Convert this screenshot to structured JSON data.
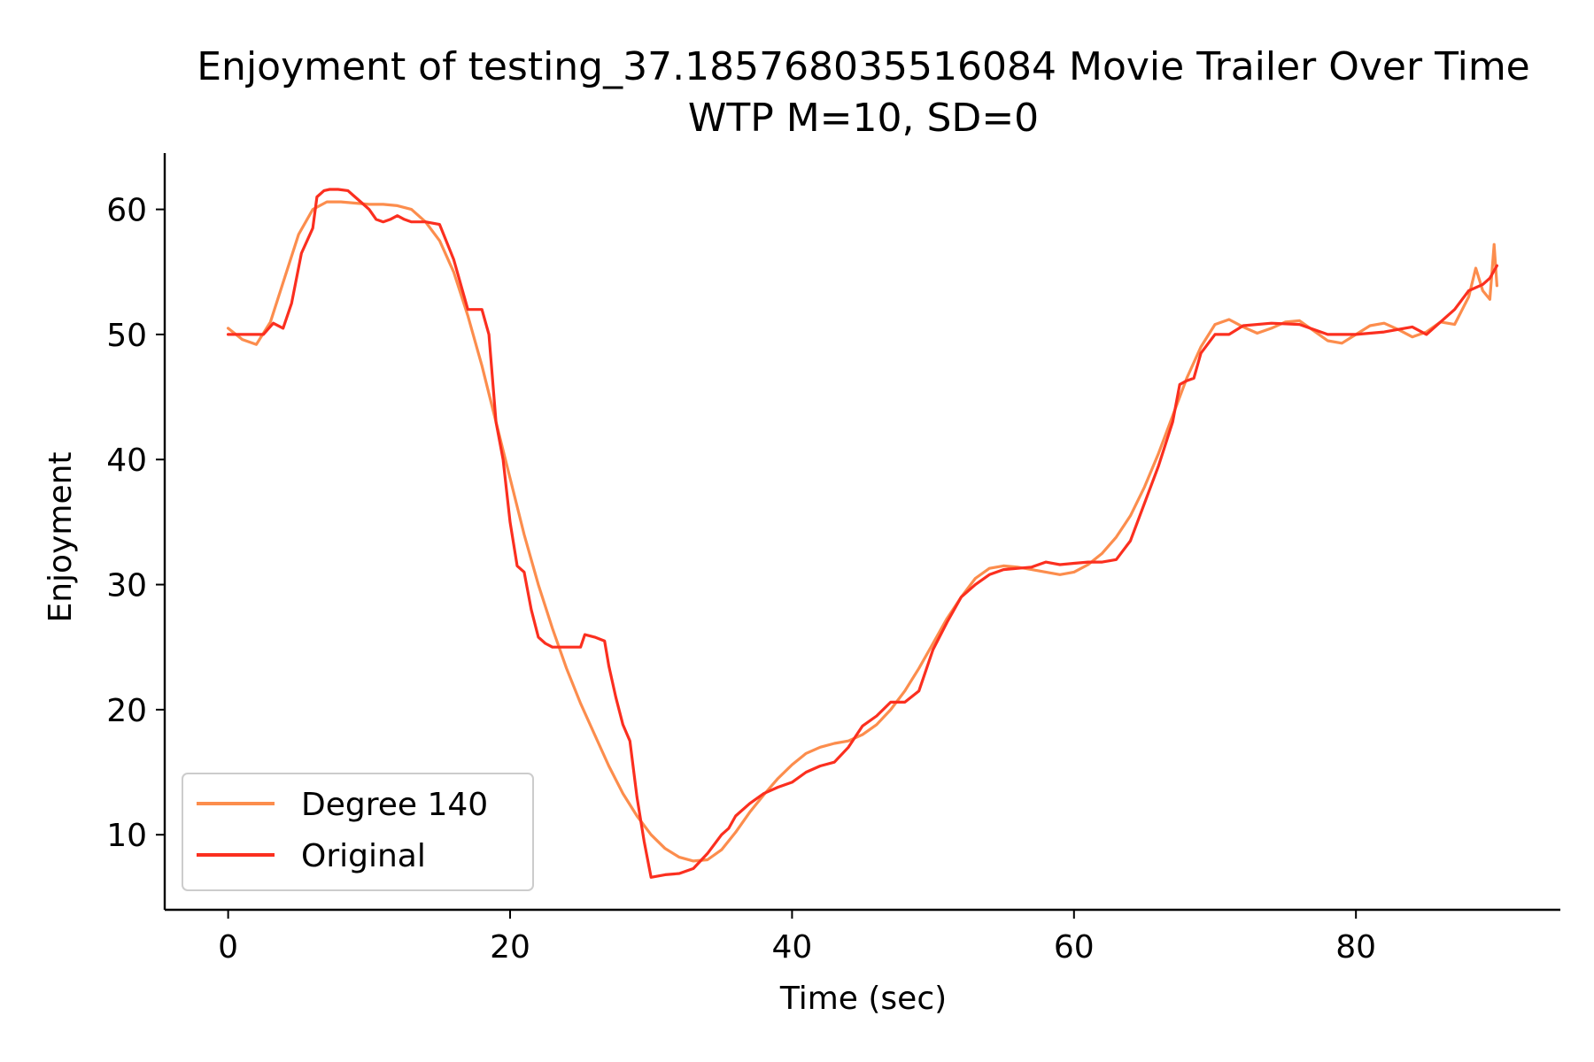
{
  "chart_data": {
    "type": "line",
    "title": "Enjoyment of testing_37.185768035516084 Movie Trailer Over Time",
    "subtitle": "WTP M=10, SD=0",
    "xlabel": "Time (sec)",
    "ylabel": "Enjoyment",
    "xlim": [
      -4.5,
      94.5
    ],
    "ylim": [
      4,
      64.5
    ],
    "xticks": [
      0,
      20,
      40,
      60,
      80
    ],
    "yticks": [
      10,
      20,
      30,
      40,
      50,
      60
    ],
    "grid": false,
    "legend_position": "lower-left",
    "series": [
      {
        "name": "Degree 140",
        "color": "#fc8d4d",
        "x": [
          0,
          1,
          2,
          3,
          4,
          5,
          6,
          7,
          8,
          9,
          10,
          11,
          12,
          13,
          14,
          15,
          16,
          17,
          18,
          19,
          20,
          21,
          22,
          23,
          24,
          25,
          26,
          27,
          28,
          29,
          30,
          31,
          32,
          33,
          34,
          35,
          36,
          37,
          38,
          39,
          40,
          41,
          42,
          43,
          44,
          45,
          46,
          47,
          48,
          49,
          50,
          51,
          52,
          53,
          54,
          55,
          56,
          57,
          58,
          59,
          60,
          61,
          62,
          63,
          64,
          65,
          66,
          67,
          68,
          69,
          70,
          71,
          72,
          73,
          74,
          75,
          76,
          77,
          78,
          79,
          80,
          81,
          82,
          83,
          84,
          85,
          86,
          87,
          88,
          88.5,
          89,
          89.5,
          89.8,
          90
        ],
        "y": [
          50.5,
          49.6,
          49.2,
          51.0,
          54.5,
          58.0,
          60.0,
          60.6,
          60.6,
          60.5,
          60.4,
          60.4,
          60.3,
          60.0,
          59.0,
          57.5,
          55.0,
          51.5,
          47.5,
          43.0,
          38.5,
          34.0,
          30.0,
          26.5,
          23.3,
          20.5,
          18.0,
          15.5,
          13.3,
          11.5,
          10.0,
          8.9,
          8.2,
          7.9,
          8.0,
          8.8,
          10.2,
          11.8,
          13.2,
          14.5,
          15.6,
          16.5,
          17.0,
          17.3,
          17.5,
          18.0,
          18.8,
          20.0,
          21.5,
          23.3,
          25.3,
          27.3,
          29.0,
          30.5,
          31.3,
          31.5,
          31.4,
          31.2,
          31.0,
          30.8,
          31.0,
          31.6,
          32.5,
          33.8,
          35.5,
          37.8,
          40.5,
          43.5,
          46.5,
          49.0,
          50.8,
          51.2,
          50.6,
          50.1,
          50.5,
          51.0,
          51.1,
          50.3,
          49.5,
          49.3,
          50.0,
          50.7,
          50.9,
          50.4,
          49.8,
          50.2,
          51.0,
          50.8,
          53.0,
          55.3,
          53.5,
          52.8,
          57.2,
          53.9
        ]
      },
      {
        "name": "Original",
        "color": "#fb2f1f",
        "x": [
          0,
          1,
          2,
          2.5,
          3.2,
          3.9,
          4.5,
          5.2,
          6.0,
          6.3,
          6.8,
          7.2,
          7.8,
          8.5,
          9.0,
          9.5,
          10.0,
          10.5,
          11.0,
          11.5,
          12.0,
          12.5,
          13.0,
          14.0,
          15.0,
          16.0,
          17.0,
          17.5,
          18.0,
          18.5,
          19.0,
          19.5,
          20.0,
          20.5,
          21.0,
          21.5,
          22.0,
          22.5,
          23.0,
          24.0,
          25.0,
          25.3,
          26.0,
          26.7,
          27.0,
          27.5,
          28.0,
          28.5,
          29.0,
          29.5,
          30.0,
          31.0,
          32.0,
          33.0,
          34.0,
          35.0,
          35.5,
          36.0,
          37.0,
          38.0,
          39.0,
          40.0,
          41.0,
          42.0,
          43.0,
          44.0,
          45.0,
          46.0,
          47.0,
          48.0,
          49.0,
          50.0,
          51.0,
          52.0,
          53.0,
          54.0,
          55.0,
          56.0,
          57.0,
          58.0,
          59.0,
          60.0,
          61.0,
          62.0,
          63.0,
          64.0,
          65.0,
          66.0,
          67.0,
          67.5,
          68.0,
          68.5,
          69.0,
          70.0,
          71.0,
          72.0,
          74.0,
          76.0,
          78.0,
          80.0,
          82.0,
          84.0,
          85.0,
          86.0,
          87.0,
          88.0,
          89.0,
          89.5,
          90.0
        ],
        "y": [
          50,
          50,
          50,
          50,
          50.9,
          50.5,
          52.5,
          56.5,
          58.5,
          61.0,
          61.5,
          61.6,
          61.6,
          61.5,
          61.0,
          60.5,
          60.0,
          59.2,
          59.0,
          59.2,
          59.5,
          59.2,
          59.0,
          59.0,
          58.8,
          56.0,
          52.0,
          52.0,
          52.0,
          50.0,
          43.0,
          40.0,
          35.0,
          31.5,
          31.0,
          28.0,
          25.8,
          25.3,
          25.0,
          25.0,
          25.0,
          26.0,
          25.8,
          25.5,
          23.5,
          21.0,
          18.8,
          17.5,
          13.0,
          9.5,
          6.6,
          6.8,
          6.9,
          7.3,
          8.5,
          10.0,
          10.5,
          11.5,
          12.5,
          13.3,
          13.8,
          14.2,
          15.0,
          15.5,
          15.8,
          17.0,
          18.7,
          19.5,
          20.6,
          20.6,
          21.5,
          24.8,
          27.0,
          29.0,
          30.0,
          30.8,
          31.2,
          31.3,
          31.4,
          31.8,
          31.6,
          31.7,
          31.8,
          31.8,
          32.0,
          33.5,
          36.5,
          39.5,
          43.0,
          46.0,
          46.3,
          46.5,
          48.5,
          50.0,
          50.0,
          50.7,
          50.9,
          50.8,
          50.0,
          50.0,
          50.2,
          50.6,
          50.0,
          51.0,
          52.0,
          53.5,
          54.0,
          54.5,
          55.5
        ]
      }
    ]
  }
}
